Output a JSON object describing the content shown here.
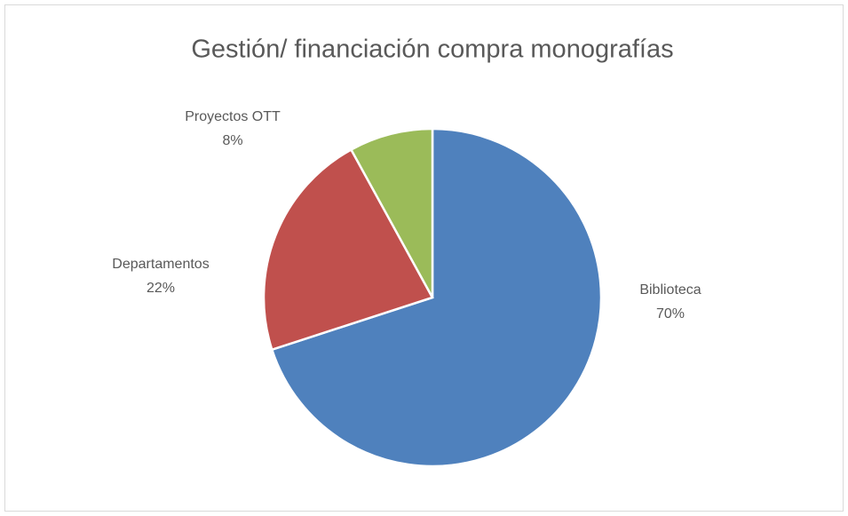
{
  "chart_data": {
    "type": "pie",
    "title": "Gestión/ financiación compra monografías",
    "categories": [
      "Biblioteca",
      "Departamentos",
      "Proyectos OTT"
    ],
    "values": [
      70,
      22,
      8
    ],
    "value_labels": [
      "70%",
      "22%",
      "8%"
    ],
    "colors": [
      "#4f81bd",
      "#c0504d",
      "#9bbb59"
    ]
  }
}
